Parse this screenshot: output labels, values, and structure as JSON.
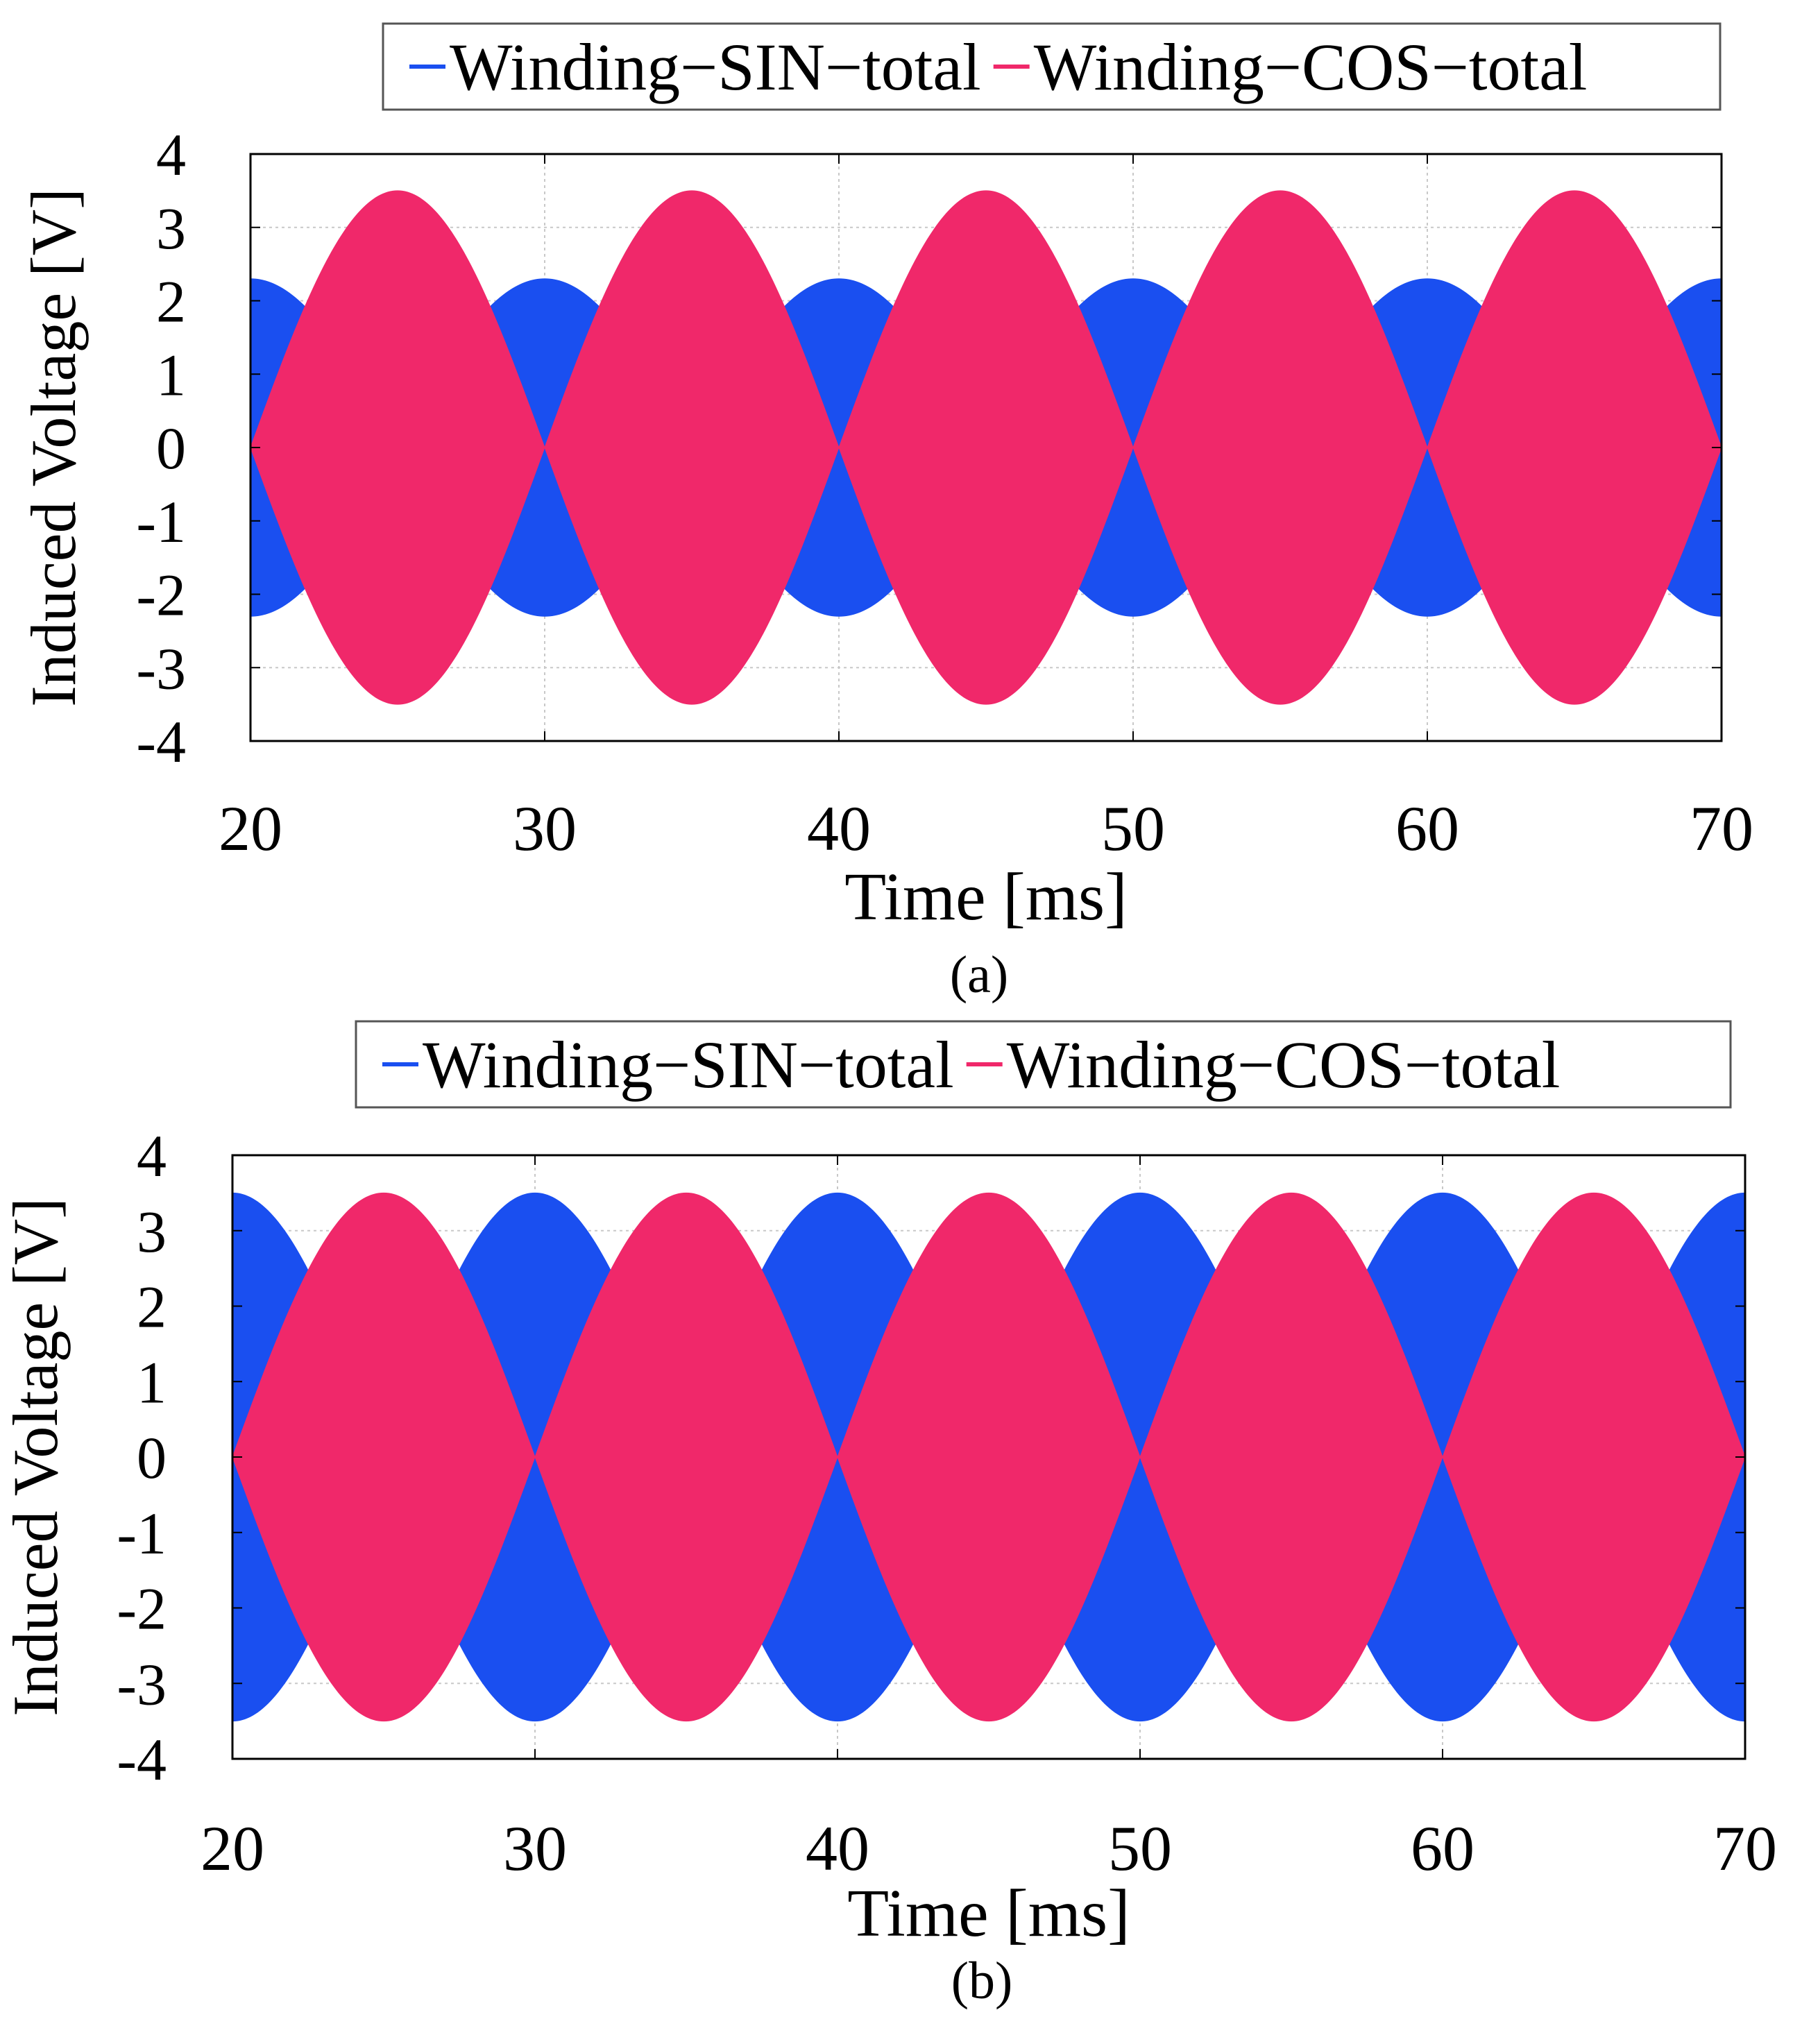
{
  "figure": {
    "panels": [
      "a",
      "b"
    ]
  },
  "chart_data": [
    {
      "panel": "a",
      "type": "area",
      "caption": "(a)",
      "xlabel": "Time [ms]",
      "ylabel": "Induced Voltage [V]",
      "xlim": [
        20,
        70
      ],
      "ylim": [
        -4,
        4
      ],
      "xticks": [
        "20",
        "30",
        "40",
        "50",
        "60",
        "70"
      ],
      "yticks": [
        "4",
        "3",
        "2",
        "1",
        "0",
        "-1",
        "-2",
        "-3",
        "-4"
      ],
      "grid": true,
      "legend_position": "top-center-outside",
      "envelope_period_ms": 20,
      "series": [
        {
          "name": "Winding−SIN−total",
          "color": "#1a4ff0",
          "envelope": "cos",
          "amplitude": 2.3,
          "peak_times_ms": [
            20,
            30,
            40,
            50,
            60,
            70
          ],
          "zero_times_ms": [
            25,
            35,
            45,
            55,
            65
          ]
        },
        {
          "name": "Winding−COS−total",
          "color": "#f0286a",
          "envelope": "sin",
          "amplitude": 3.5,
          "peak_times_ms": [
            25,
            35,
            45,
            55,
            65
          ],
          "zero_times_ms": [
            20,
            30,
            40,
            50,
            60,
            70
          ]
        }
      ]
    },
    {
      "panel": "b",
      "type": "area",
      "caption": "(b)",
      "xlabel": "Time [ms]",
      "ylabel": "Induced Voltage [V]",
      "xlim": [
        20,
        70
      ],
      "ylim": [
        -4,
        4
      ],
      "xticks": [
        "20",
        "30",
        "40",
        "50",
        "60",
        "70"
      ],
      "yticks": [
        "4",
        "3",
        "2",
        "1",
        "0",
        "-1",
        "-2",
        "-3",
        "-4"
      ],
      "grid": true,
      "legend_position": "top-center-outside",
      "envelope_period_ms": 20,
      "series": [
        {
          "name": "Winding−SIN−total",
          "color": "#1a4ff0",
          "envelope": "cos",
          "amplitude": 3.5,
          "peak_times_ms": [
            20,
            30,
            40,
            50,
            60,
            70
          ],
          "zero_times_ms": [
            25,
            35,
            45,
            55,
            65
          ]
        },
        {
          "name": "Winding−COS−total",
          "color": "#f0286a",
          "envelope": "sin",
          "amplitude": 3.5,
          "peak_times_ms": [
            25,
            35,
            45,
            55,
            65
          ],
          "zero_times_ms": [
            20,
            30,
            40,
            50,
            60,
            70
          ]
        }
      ]
    }
  ]
}
